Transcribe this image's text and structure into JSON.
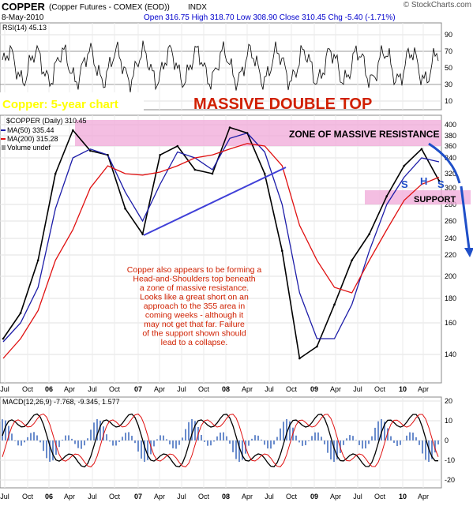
{
  "header": {
    "symbol": "COPPER",
    "description": "(Copper Futures - COMEX (EOD))",
    "exchange": "INDX",
    "date": "8-May-2010",
    "ohlc": "Open 316.75  High 318.70  Low 308.90  Close 310.45  Chg -5.40 (-1.71%)",
    "watermark": "© StockCharts.com"
  },
  "rsi": {
    "label": "RSI(14) 45.13",
    "ticks": [
      "90",
      "70",
      "50",
      "30",
      "10"
    ]
  },
  "price": {
    "legend": [
      "$COPPER (Daily) 310.45",
      "MA(50) 335.44",
      "MA(200) 315.28",
      "Volume undef"
    ],
    "ticks": [
      "400",
      "380",
      "360",
      "340",
      "320",
      "300",
      "280",
      "260",
      "240",
      "220",
      "200",
      "180",
      "160",
      "140"
    ],
    "annotations": {
      "chart_label": "Copper: 5-year chart",
      "pattern_title": "MASSIVE DOUBLE TOP",
      "zone": "ZONE OF MASSIVE RESISTANCE",
      "support": "SUPPORT",
      "left_shoulder": "S",
      "head": "H",
      "right_shoulder": "S",
      "commentary": [
        "Copper also appears to be forming a",
        "Head-and-Shoulders top beneath",
        "a zone of massive resistance.",
        "Looks like a great short on an",
        "approach to the 355 area in",
        "coming weeks - although it",
        "may not get that far. Failure",
        "of the support shown should",
        "lead to a collapse."
      ]
    }
  },
  "macd": {
    "label": "MACD(12,26,9) -7.768, -9.345, 1.577",
    "ticks": [
      "20",
      "10",
      "0",
      "-10",
      "-20"
    ]
  },
  "x_labels": [
    "Jul",
    "Oct",
    "06",
    "Apr",
    "Jul",
    "Oct",
    "07",
    "Apr",
    "Jul",
    "Oct",
    "08",
    "Apr",
    "Jul",
    "Oct",
    "09",
    "Apr",
    "Jul",
    "Oct",
    "10",
    "Apr"
  ],
  "colors": {
    "ma50": "#1c1ca8",
    "ma200": "#e01010",
    "annotation_red": "#d02000",
    "annotation_blue": "#1f4fc8",
    "resistance_zone": "#f0a8d8",
    "chart_label_yellow": "#ffff00",
    "ohlc_blue": "#0000cc"
  },
  "chart_data": {
    "type": "line",
    "title": "COPPER",
    "x": [
      "Jul-05",
      "Oct-05",
      "Jan-06",
      "Apr-06",
      "May-06",
      "Jul-06",
      "Oct-06",
      "Jan-07",
      "Feb-07",
      "Apr-07",
      "Jul-07",
      "Oct-07",
      "Jan-08",
      "Apr-08",
      "Jul-08",
      "Sep-08",
      "Oct-08",
      "Dec-08",
      "Jan-09",
      "Mar-09",
      "Apr-09",
      "Jul-09",
      "Oct-09",
      "Jan-10",
      "Apr-10",
      "May-10"
    ],
    "series": [
      {
        "name": "$COPPER (Daily)",
        "values": [
          150,
          168,
          215,
          320,
          390,
          352,
          345,
          275,
          245,
          345,
          360,
          325,
          320,
          395,
          385,
          320,
          225,
          135,
          145,
          175,
          215,
          245,
          290,
          330,
          355,
          310
        ]
      },
      {
        "name": "MA(50)",
        "values": [
          148,
          160,
          190,
          275,
          340,
          355,
          345,
          295,
          260,
          305,
          350,
          340,
          325,
          375,
          385,
          350,
          280,
          185,
          150,
          150,
          175,
          225,
          280,
          315,
          340,
          335
        ]
      },
      {
        "name": "MA(200)",
        "values": [
          135,
          150,
          170,
          215,
          250,
          300,
          330,
          320,
          318,
          322,
          330,
          340,
          345,
          355,
          365,
          360,
          330,
          255,
          215,
          190,
          185,
          215,
          250,
          285,
          305,
          315
        ]
      }
    ],
    "ylim": [
      125,
      405
    ]
  }
}
